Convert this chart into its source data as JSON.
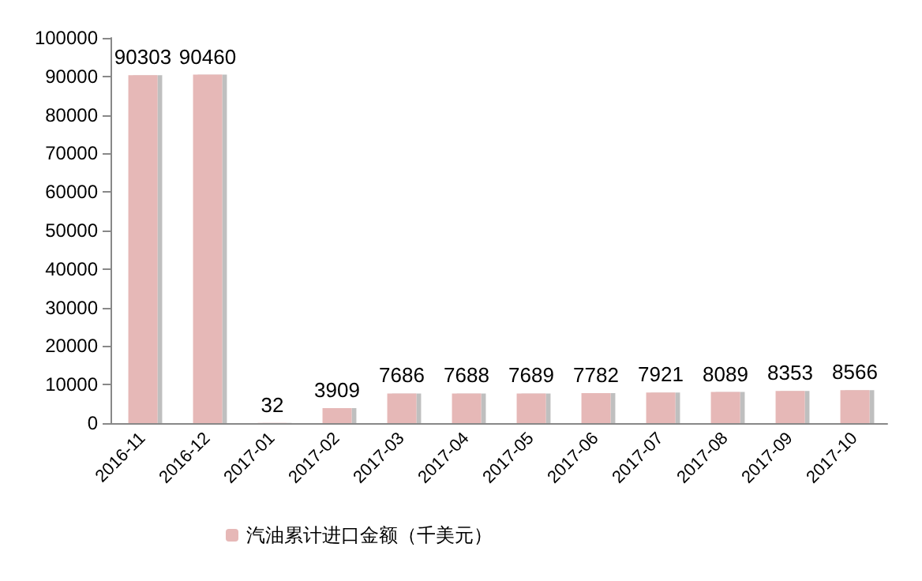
{
  "chart_data": {
    "type": "bar",
    "categories": [
      "2016-11",
      "2016-12",
      "2017-01",
      "2017-02",
      "2017-03",
      "2017-04",
      "2017-05",
      "2017-06",
      "2017-07",
      "2017-08",
      "2017-09",
      "2017-10"
    ],
    "series": [
      {
        "name": "汽油累计进口金额（千美元）",
        "color": "#e6b8b7",
        "values": [
          90303,
          90460,
          32,
          3909,
          7686,
          7688,
          7689,
          7782,
          7921,
          8089,
          8353,
          8566
        ]
      }
    ],
    "ylim": [
      0,
      100000
    ],
    "yticks": [
      0,
      10000,
      20000,
      30000,
      40000,
      50000,
      60000,
      70000,
      80000,
      90000,
      100000
    ],
    "grid": false,
    "legend": "bottom",
    "data_labels": true
  }
}
